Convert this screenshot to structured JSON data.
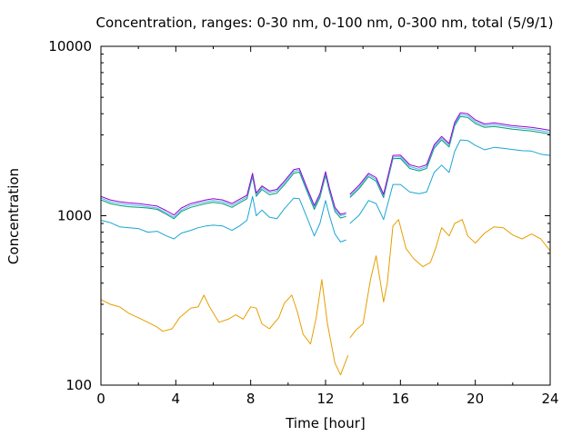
{
  "chart_data": {
    "type": "line",
    "title": "Concentration, ranges: 0-30 nm, 0-100 nm, 0-300 nm, total (5/9/1)",
    "xlabel": "Time [hour]",
    "ylabel": "Concentration",
    "xlim": [
      0,
      24
    ],
    "ylim": [
      100,
      10000
    ],
    "yscale": "log",
    "grid": false,
    "legend": "none",
    "x_ticks": [
      {
        "value": 0,
        "label": "0"
      },
      {
        "value": 4,
        "label": "4"
      },
      {
        "value": 8,
        "label": "8"
      },
      {
        "value": 12,
        "label": "12"
      },
      {
        "value": 16,
        "label": "16"
      },
      {
        "value": 20,
        "label": "20"
      },
      {
        "value": 24,
        "label": "24"
      }
    ],
    "y_ticks": [
      {
        "value": 100,
        "label": "100"
      },
      {
        "value": 1000,
        "label": "1000"
      },
      {
        "value": 10000,
        "label": "10000"
      }
    ],
    "series": [
      {
        "color": "#e69f00",
        "points": [
          [
            0,
            320
          ],
          [
            0.5,
            300
          ],
          [
            1,
            290
          ],
          [
            1.5,
            265
          ],
          [
            2,
            250
          ],
          [
            2.5,
            235
          ],
          [
            3,
            220
          ],
          [
            3.3,
            208
          ],
          [
            3.8,
            215
          ],
          [
            4.2,
            250
          ],
          [
            4.8,
            285
          ],
          [
            5.2,
            290
          ],
          [
            5.5,
            340
          ],
          [
            5.8,
            290
          ],
          [
            6.3,
            235
          ],
          [
            6.8,
            245
          ],
          [
            7.2,
            260
          ],
          [
            7.6,
            245
          ],
          [
            8,
            290
          ],
          [
            8.3,
            285
          ],
          [
            8.6,
            230
          ],
          [
            9,
            215
          ],
          [
            9.5,
            250
          ],
          [
            9.8,
            305
          ],
          [
            10.2,
            340
          ],
          [
            10.5,
            270
          ],
          [
            10.8,
            200
          ],
          [
            11.2,
            175
          ],
          [
            11.5,
            250
          ],
          [
            11.8,
            420
          ],
          [
            12.1,
            230
          ],
          [
            12.5,
            135
          ],
          [
            12.8,
            115
          ],
          [
            13.1,
            140
          ],
          [
            13.2,
            150
          ]
        ],
        "points2": [
          [
            13.3,
            190
          ],
          [
            13.6,
            210
          ],
          [
            14,
            230
          ],
          [
            14.4,
            420
          ],
          [
            14.7,
            580
          ],
          [
            15.1,
            310
          ],
          [
            15.3,
            400
          ],
          [
            15.6,
            870
          ],
          [
            15.9,
            950
          ],
          [
            16.3,
            640
          ],
          [
            16.7,
            560
          ],
          [
            17.2,
            500
          ],
          [
            17.6,
            530
          ],
          [
            17.9,
            650
          ],
          [
            18.2,
            850
          ],
          [
            18.6,
            760
          ],
          [
            18.9,
            900
          ],
          [
            19.3,
            950
          ],
          [
            19.6,
            760
          ],
          [
            20,
            690
          ],
          [
            20.5,
            790
          ],
          [
            21,
            860
          ],
          [
            21.5,
            850
          ],
          [
            22,
            770
          ],
          [
            22.5,
            730
          ],
          [
            23,
            780
          ],
          [
            23.5,
            730
          ],
          [
            24,
            620
          ]
        ]
      },
      {
        "color": "#1ba6d4",
        "points": [
          [
            0,
            940
          ],
          [
            0.5,
            910
          ],
          [
            1,
            860
          ],
          [
            1.5,
            850
          ],
          [
            2,
            840
          ],
          [
            2.5,
            800
          ],
          [
            3,
            810
          ],
          [
            3.5,
            760
          ],
          [
            3.9,
            730
          ],
          [
            4.3,
            790
          ],
          [
            4.8,
            820
          ],
          [
            5.2,
            850
          ],
          [
            5.6,
            870
          ],
          [
            6,
            880
          ],
          [
            6.5,
            870
          ],
          [
            7,
            820
          ],
          [
            7.4,
            870
          ],
          [
            7.8,
            940
          ],
          [
            8.1,
            1300
          ],
          [
            8.3,
            1000
          ],
          [
            8.6,
            1080
          ],
          [
            9,
            980
          ],
          [
            9.4,
            960
          ],
          [
            9.8,
            1100
          ],
          [
            10.3,
            1270
          ],
          [
            10.6,
            1260
          ],
          [
            11,
            980
          ],
          [
            11.4,
            760
          ],
          [
            11.7,
            900
          ],
          [
            12,
            1230
          ],
          [
            12.2,
            1010
          ],
          [
            12.5,
            780
          ],
          [
            12.8,
            700
          ],
          [
            13.1,
            720
          ]
        ],
        "points2": [
          [
            13.3,
            900
          ],
          [
            13.8,
            1010
          ],
          [
            14.3,
            1230
          ],
          [
            14.7,
            1180
          ],
          [
            15.1,
            950
          ],
          [
            15.6,
            1530
          ],
          [
            16,
            1530
          ],
          [
            16.5,
            1380
          ],
          [
            17,
            1350
          ],
          [
            17.4,
            1380
          ],
          [
            17.8,
            1800
          ],
          [
            18.2,
            1990
          ],
          [
            18.6,
            1800
          ],
          [
            18.9,
            2400
          ],
          [
            19.2,
            2800
          ],
          [
            19.6,
            2780
          ],
          [
            20,
            2600
          ],
          [
            20.5,
            2450
          ],
          [
            21,
            2530
          ],
          [
            21.5,
            2500
          ],
          [
            22,
            2460
          ],
          [
            22.5,
            2420
          ],
          [
            23,
            2410
          ],
          [
            23.5,
            2310
          ],
          [
            24,
            2270
          ]
        ]
      },
      {
        "color": "#009e73",
        "points": [
          [
            0,
            1240
          ],
          [
            0.5,
            1180
          ],
          [
            1,
            1150
          ],
          [
            1.5,
            1130
          ],
          [
            2,
            1120
          ],
          [
            2.5,
            1110
          ],
          [
            3,
            1090
          ],
          [
            3.5,
            1020
          ],
          [
            3.9,
            960
          ],
          [
            4.3,
            1060
          ],
          [
            4.8,
            1120
          ],
          [
            5.2,
            1150
          ],
          [
            5.6,
            1180
          ],
          [
            6,
            1200
          ],
          [
            6.5,
            1180
          ],
          [
            7,
            1120
          ],
          [
            7.4,
            1190
          ],
          [
            7.8,
            1260
          ],
          [
            8.1,
            1700
          ],
          [
            8.3,
            1300
          ],
          [
            8.6,
            1430
          ],
          [
            9,
            1330
          ],
          [
            9.4,
            1360
          ],
          [
            9.8,
            1520
          ],
          [
            10.3,
            1780
          ],
          [
            10.6,
            1810
          ],
          [
            11,
            1400
          ],
          [
            11.4,
            1090
          ],
          [
            11.7,
            1280
          ],
          [
            12,
            1730
          ],
          [
            12.2,
            1400
          ],
          [
            12.5,
            1060
          ],
          [
            12.8,
            970
          ],
          [
            13.1,
            990
          ]
        ],
        "points2": [
          [
            13.3,
            1280
          ],
          [
            13.8,
            1450
          ],
          [
            14.3,
            1700
          ],
          [
            14.7,
            1600
          ],
          [
            15.1,
            1280
          ],
          [
            15.6,
            2170
          ],
          [
            16,
            2180
          ],
          [
            16.5,
            1900
          ],
          [
            17,
            1840
          ],
          [
            17.4,
            1900
          ],
          [
            17.8,
            2500
          ],
          [
            18.2,
            2800
          ],
          [
            18.6,
            2550
          ],
          [
            18.9,
            3400
          ],
          [
            19.2,
            3850
          ],
          [
            19.6,
            3800
          ],
          [
            20,
            3500
          ],
          [
            20.5,
            3320
          ],
          [
            21,
            3360
          ],
          [
            21.5,
            3300
          ],
          [
            22,
            3240
          ],
          [
            22.5,
            3200
          ],
          [
            23,
            3160
          ],
          [
            23.5,
            3100
          ],
          [
            24,
            3030
          ]
        ]
      },
      {
        "color": "#56b4e9",
        "points": [
          [
            0,
            1270
          ],
          [
            0.5,
            1210
          ],
          [
            1,
            1180
          ],
          [
            1.5,
            1160
          ],
          [
            2,
            1150
          ],
          [
            2.5,
            1130
          ],
          [
            3,
            1110
          ],
          [
            3.5,
            1040
          ],
          [
            3.9,
            980
          ],
          [
            4.3,
            1080
          ],
          [
            4.8,
            1150
          ],
          [
            5.2,
            1180
          ],
          [
            5.6,
            1210
          ],
          [
            6,
            1230
          ],
          [
            6.5,
            1210
          ],
          [
            7,
            1150
          ],
          [
            7.4,
            1220
          ],
          [
            7.8,
            1290
          ],
          [
            8.1,
            1740
          ],
          [
            8.3,
            1330
          ],
          [
            8.6,
            1470
          ],
          [
            9,
            1370
          ],
          [
            9.4,
            1400
          ],
          [
            9.8,
            1560
          ],
          [
            10.3,
            1830
          ],
          [
            10.6,
            1860
          ],
          [
            11,
            1440
          ],
          [
            11.4,
            1120
          ],
          [
            11.7,
            1320
          ],
          [
            12,
            1780
          ],
          [
            12.2,
            1440
          ],
          [
            12.5,
            1090
          ],
          [
            12.8,
            1000
          ],
          [
            13.1,
            1020
          ]
        ],
        "points2": [
          [
            13.3,
            1310
          ],
          [
            13.8,
            1480
          ],
          [
            14.3,
            1740
          ],
          [
            14.7,
            1640
          ],
          [
            15.1,
            1310
          ],
          [
            15.6,
            2220
          ],
          [
            16,
            2230
          ],
          [
            16.5,
            1950
          ],
          [
            17,
            1880
          ],
          [
            17.4,
            1950
          ],
          [
            17.8,
            2560
          ],
          [
            18.2,
            2870
          ],
          [
            18.6,
            2610
          ],
          [
            18.9,
            3480
          ],
          [
            19.2,
            3950
          ],
          [
            19.6,
            3900
          ],
          [
            20,
            3590
          ],
          [
            20.5,
            3400
          ],
          [
            21,
            3450
          ],
          [
            21.5,
            3390
          ],
          [
            22,
            3320
          ],
          [
            22.5,
            3280
          ],
          [
            23,
            3240
          ],
          [
            23.5,
            3180
          ],
          [
            24,
            3110
          ]
        ]
      },
      {
        "color": "#9400d3",
        "points": [
          [
            0,
            1300
          ],
          [
            0.5,
            1240
          ],
          [
            1,
            1210
          ],
          [
            1.5,
            1190
          ],
          [
            2,
            1180
          ],
          [
            2.5,
            1160
          ],
          [
            3,
            1140
          ],
          [
            3.5,
            1070
          ],
          [
            3.9,
            1010
          ],
          [
            4.3,
            1110
          ],
          [
            4.8,
            1180
          ],
          [
            5.2,
            1210
          ],
          [
            5.6,
            1240
          ],
          [
            6,
            1260
          ],
          [
            6.5,
            1240
          ],
          [
            7,
            1180
          ],
          [
            7.4,
            1250
          ],
          [
            7.8,
            1320
          ],
          [
            8.1,
            1780
          ],
          [
            8.3,
            1360
          ],
          [
            8.6,
            1500
          ],
          [
            9,
            1400
          ],
          [
            9.4,
            1430
          ],
          [
            9.8,
            1600
          ],
          [
            10.3,
            1870
          ],
          [
            10.6,
            1900
          ],
          [
            11,
            1470
          ],
          [
            11.4,
            1150
          ],
          [
            11.7,
            1350
          ],
          [
            12,
            1820
          ],
          [
            12.2,
            1470
          ],
          [
            12.5,
            1120
          ],
          [
            12.8,
            1020
          ],
          [
            13.1,
            1040
          ]
        ],
        "points2": [
          [
            13.3,
            1340
          ],
          [
            13.8,
            1520
          ],
          [
            14.3,
            1780
          ],
          [
            14.7,
            1680
          ],
          [
            15.1,
            1340
          ],
          [
            15.6,
            2270
          ],
          [
            16,
            2280
          ],
          [
            16.5,
            2000
          ],
          [
            17,
            1930
          ],
          [
            17.4,
            2000
          ],
          [
            17.8,
            2620
          ],
          [
            18.2,
            2940
          ],
          [
            18.6,
            2670
          ],
          [
            18.9,
            3560
          ],
          [
            19.2,
            4050
          ],
          [
            19.6,
            4000
          ],
          [
            20,
            3680
          ],
          [
            20.5,
            3480
          ],
          [
            21,
            3530
          ],
          [
            21.5,
            3470
          ],
          [
            22,
            3400
          ],
          [
            22.5,
            3360
          ],
          [
            23,
            3320
          ],
          [
            23.5,
            3260
          ],
          [
            24,
            3190
          ]
        ]
      }
    ]
  }
}
